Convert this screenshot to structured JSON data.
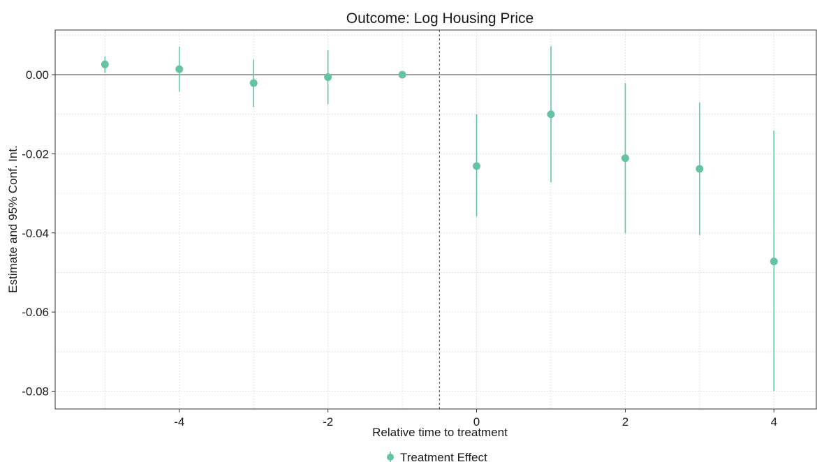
{
  "chart_data": {
    "type": "scatter",
    "title": "Outcome: Log Housing Price",
    "xlabel": "Relative time to treatment",
    "ylabel": "Estimate and 95% Conf. Int.",
    "xlim": [
      -5.67,
      4.57
    ],
    "ylim": [
      -0.0845,
      0.0113
    ],
    "x_ticks": [
      -4,
      -2,
      0,
      2,
      4
    ],
    "x_tick_labels": [
      "-4",
      "-2",
      "0",
      "2",
      "4"
    ],
    "y_ticks": [
      0.0,
      -0.02,
      -0.04,
      -0.06,
      -0.08
    ],
    "y_tick_labels": [
      "0.00",
      "-0.02",
      "-0.04",
      "-0.06",
      "-0.08"
    ],
    "grid": true,
    "reference_lines": {
      "horizontal_y": 0,
      "vertical_dashed_x": -0.5
    },
    "legend": {
      "placement": "bottom",
      "entries": [
        "Treatment Effect"
      ]
    },
    "colors": {
      "series": "#66c2a5",
      "axis": "#333333",
      "grid": "#dcdcdc"
    },
    "series": [
      {
        "name": "Treatment Effect",
        "points": [
          {
            "x": -5,
            "y": 0.0026,
            "lo": 0.0005,
            "hi": 0.0046
          },
          {
            "x": -4,
            "y": 0.0014,
            "lo": -0.0043,
            "hi": 0.0071
          },
          {
            "x": -3,
            "y": -0.0021,
            "lo": -0.0082,
            "hi": 0.0038
          },
          {
            "x": -2,
            "y": -0.0006,
            "lo": -0.0075,
            "hi": 0.0062
          },
          {
            "x": -1,
            "y": 0.0,
            "lo": 0.0,
            "hi": 0.0
          },
          {
            "x": 0,
            "y": -0.0231,
            "lo": -0.0358,
            "hi": -0.01
          },
          {
            "x": 1,
            "y": -0.01,
            "lo": -0.0272,
            "hi": 0.0072
          },
          {
            "x": 2,
            "y": -0.0211,
            "lo": -0.0401,
            "hi": -0.0021
          },
          {
            "x": 3,
            "y": -0.0238,
            "lo": -0.0406,
            "hi": -0.007
          },
          {
            "x": 4,
            "y": -0.0472,
            "lo": -0.08,
            "hi": -0.0141
          }
        ]
      }
    ]
  }
}
